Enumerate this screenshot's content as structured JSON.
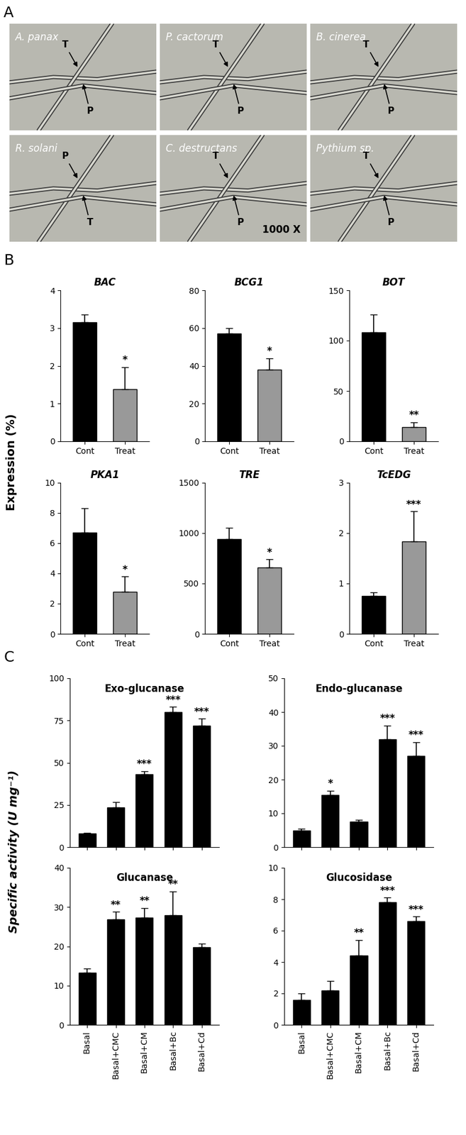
{
  "panel_a": {
    "label": "A",
    "images": [
      {
        "name": "A. panax",
        "labels": [
          "T",
          "P"
        ]
      },
      {
        "name": "P. cactorum",
        "labels": [
          "T",
          "P"
        ]
      },
      {
        "name": "B. cinerea",
        "labels": [
          "T",
          "P"
        ]
      },
      {
        "name": "R. solani",
        "labels": [
          "P",
          "T"
        ]
      },
      {
        "name": "C. destructans",
        "labels": [
          "T",
          "P"
        ],
        "magnification": "1000 X"
      },
      {
        "name": "Pythium sp.",
        "labels": [
          "T",
          "P"
        ]
      }
    ]
  },
  "panel_b": {
    "label": "B",
    "ylabel": "Expression (%)"
  },
  "panel_c": {
    "label": "C",
    "ylabel": "Specific activity (U mg⁻¹)"
  },
  "chart_data": [
    {
      "type": "bar",
      "panel": "B",
      "title": "BAC",
      "categories": [
        "Cont",
        "Treat"
      ],
      "values": [
        3.15,
        1.38
      ],
      "errors": [
        0.2,
        0.58
      ],
      "significance": [
        null,
        "*"
      ],
      "colors": [
        "#000000",
        "#999999"
      ],
      "ylim": [
        0,
        4
      ],
      "yticks": [
        0,
        1,
        2,
        3,
        4
      ]
    },
    {
      "type": "bar",
      "panel": "B",
      "title": "BCG1",
      "categories": [
        "Cont",
        "Treat"
      ],
      "values": [
        57,
        38
      ],
      "errors": [
        3,
        6
      ],
      "significance": [
        null,
        "*"
      ],
      "colors": [
        "#000000",
        "#999999"
      ],
      "ylim": [
        0,
        80
      ],
      "yticks": [
        0,
        20,
        40,
        60,
        80
      ]
    },
    {
      "type": "bar",
      "panel": "B",
      "title": "BOT",
      "categories": [
        "Cont",
        "Treat"
      ],
      "values": [
        108,
        14
      ],
      "errors": [
        18,
        5
      ],
      "significance": [
        null,
        "**"
      ],
      "colors": [
        "#000000",
        "#999999"
      ],
      "ylim": [
        0,
        150
      ],
      "yticks": [
        0,
        50,
        100,
        150
      ]
    },
    {
      "type": "bar",
      "panel": "B",
      "title": "PKA1",
      "categories": [
        "Cont",
        "Treat"
      ],
      "values": [
        6.7,
        2.8
      ],
      "errors": [
        1.6,
        1.0
      ],
      "significance": [
        null,
        "*"
      ],
      "colors": [
        "#000000",
        "#999999"
      ],
      "ylim": [
        0,
        10
      ],
      "yticks": [
        0,
        2,
        4,
        6,
        8,
        10
      ]
    },
    {
      "type": "bar",
      "panel": "B",
      "title": "TRE",
      "categories": [
        "Cont",
        "Treat"
      ],
      "values": [
        940,
        660
      ],
      "errors": [
        110,
        80
      ],
      "significance": [
        null,
        "*"
      ],
      "colors": [
        "#000000",
        "#999999"
      ],
      "ylim": [
        0,
        1500
      ],
      "yticks": [
        0,
        500,
        1000,
        1500
      ]
    },
    {
      "type": "bar",
      "panel": "B",
      "title": "TcEDG",
      "categories": [
        "Cont",
        "Treat"
      ],
      "values": [
        0.75,
        1.83
      ],
      "errors": [
        0.07,
        0.6
      ],
      "significance": [
        null,
        "***"
      ],
      "colors": [
        "#000000",
        "#999999"
      ],
      "ylim": [
        0,
        3
      ],
      "yticks": [
        0,
        1,
        2,
        3
      ]
    },
    {
      "type": "bar",
      "panel": "C",
      "title": "Exo-glucanase",
      "categories": [
        "Basal",
        "Basal+CMC",
        "Basal+CM",
        "Basal+Bc",
        "Basal+Cd"
      ],
      "values": [
        8,
        23.5,
        43,
        80,
        72
      ],
      "errors": [
        0.5,
        3,
        2,
        3,
        4
      ],
      "significance": [
        null,
        null,
        "***",
        "***",
        "***"
      ],
      "color": "#000000",
      "ylim": [
        0,
        100
      ],
      "yticks": [
        0,
        25,
        50,
        75,
        100
      ],
      "tick_labels": "y"
    },
    {
      "type": "bar",
      "panel": "C",
      "title": "Endo-glucanase",
      "categories": [
        "Basal",
        "Basal+CMC",
        "Basal+CM",
        "Basal+Bc",
        "Basal+Cd"
      ],
      "values": [
        5,
        15.5,
        7.5,
        32,
        27
      ],
      "errors": [
        0.5,
        1.2,
        0.5,
        4,
        4
      ],
      "significance": [
        null,
        "*",
        null,
        "***",
        "***"
      ],
      "color": "#000000",
      "ylim": [
        0,
        50
      ],
      "yticks": [
        0,
        10,
        20,
        30,
        40,
        50
      ],
      "tick_labels": "y"
    },
    {
      "type": "bar",
      "panel": "C",
      "title": "Glucanase",
      "categories": [
        "Basal",
        "Basal+CMC",
        "Basal+CM",
        "Basal+Bc",
        "Basal+Cd"
      ],
      "values": [
        13.3,
        26.8,
        27.3,
        28,
        19.7
      ],
      "errors": [
        1,
        2,
        2.5,
        6,
        1
      ],
      "significance": [
        null,
        "**",
        "**",
        "**",
        null
      ],
      "color": "#000000",
      "ylim": [
        0,
        40
      ],
      "yticks": [
        0,
        10,
        20,
        30,
        40
      ]
    },
    {
      "type": "bar",
      "panel": "C",
      "title": "Glucosidase",
      "categories": [
        "Basal",
        "Basal+CMC",
        "Basal+CM",
        "Basal+Bc",
        "Basal+Cd"
      ],
      "values": [
        1.6,
        2.2,
        4.4,
        7.8,
        6.6
      ],
      "errors": [
        0.4,
        0.6,
        1,
        0.3,
        0.3
      ],
      "significance": [
        null,
        null,
        "**",
        "***",
        "***"
      ],
      "color": "#000000",
      "ylim": [
        0,
        10
      ],
      "yticks": [
        0,
        2,
        4,
        6,
        8,
        10
      ]
    }
  ]
}
